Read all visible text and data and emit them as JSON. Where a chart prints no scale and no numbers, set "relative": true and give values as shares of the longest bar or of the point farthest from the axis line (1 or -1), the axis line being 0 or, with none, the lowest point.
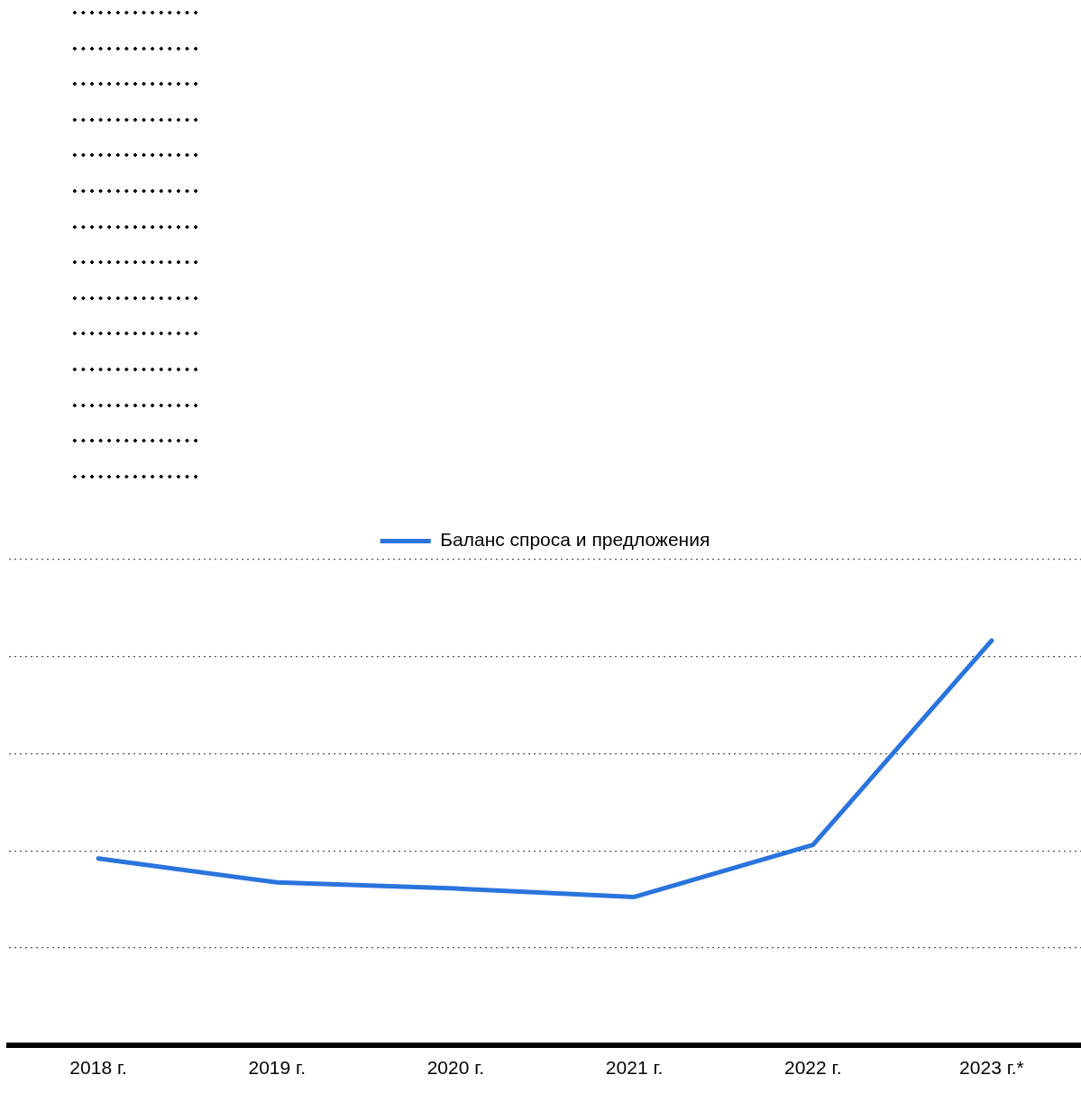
{
  "chart_data": {
    "type": "line",
    "categories": [
      "2018 г.",
      "2019 г.",
      "2020 г.",
      "2021 г.",
      "2022 г.",
      "2023 г.*"
    ],
    "series": [
      {
        "name": "Баланс спроса и предложения",
        "color": "#2a74dd",
        "values": [
          0.461,
          0.402,
          0.387,
          0.366,
          0.495,
          1
        ]
      }
    ],
    "relative": true,
    "grid": "y",
    "legend": "top",
    "marker": "none",
    "line_style": "solid"
  }
}
